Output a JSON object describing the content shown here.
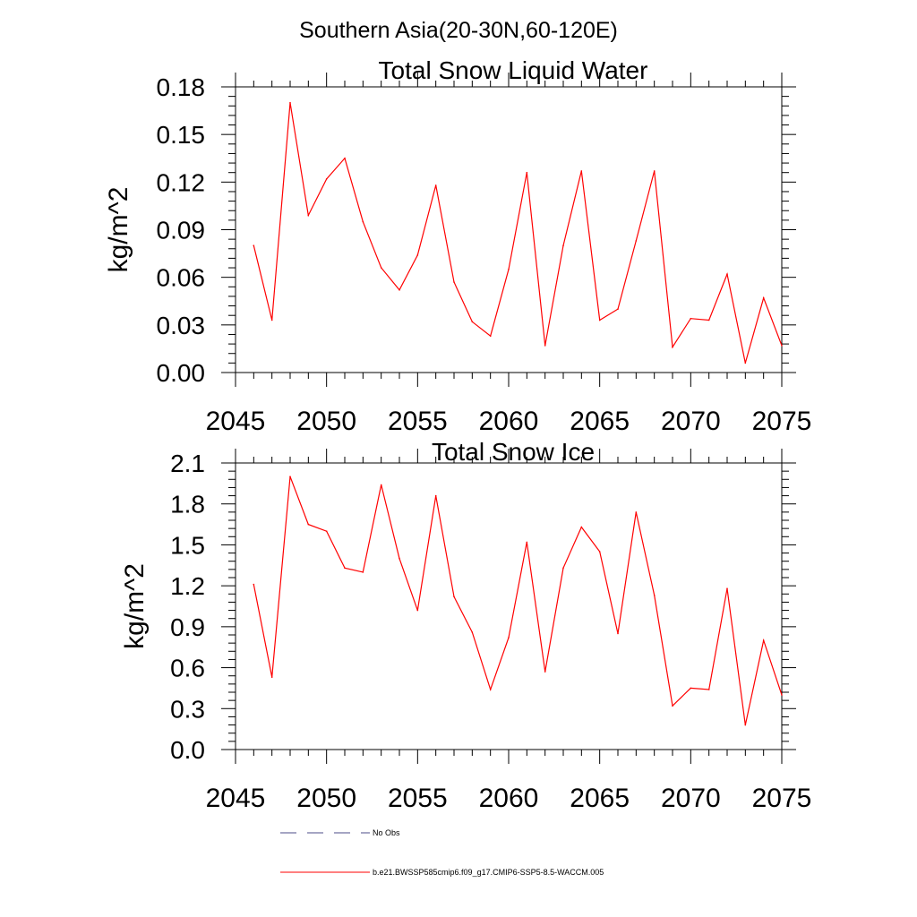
{
  "main_title": "Southern Asia(20-30N,60-120E)",
  "legend": {
    "items": [
      {
        "label": "No Obs",
        "style": "dashed",
        "color": "#4b4b8a"
      },
      {
        "label": "b.e21.BWSSP585cmip6.f09_g17.CMIP6-SSP5-8.5-WACCM.005",
        "style": "solid",
        "color": "#ff0000"
      }
    ]
  },
  "chart_data": [
    {
      "type": "line",
      "title": "Total Snow Liquid Water",
      "ylabel": "kg/m^2",
      "xlim": [
        2045,
        2075
      ],
      "ylim": [
        0.0,
        0.18
      ],
      "xticks": [
        2045,
        2050,
        2055,
        2060,
        2065,
        2070,
        2075
      ],
      "xtick_labels": [
        "2045",
        "2050",
        "2055",
        "2060",
        "2065",
        "2070",
        "2075"
      ],
      "yticks": [
        0.0,
        0.03,
        0.06,
        0.09,
        0.12,
        0.15,
        0.18
      ],
      "ytick_labels": [
        "0.00",
        "0.03",
        "0.06",
        "0.09",
        "0.12",
        "0.15",
        "0.18"
      ],
      "series": [
        {
          "name": "b.e21.BWSSP585cmip6.f09_g17.CMIP6-SSP5-8.5-WACCM.005",
          "color": "#ff0000",
          "x": [
            2046,
            2047,
            2048,
            2049,
            2050,
            2051,
            2052,
            2053,
            2054,
            2055,
            2056,
            2057,
            2058,
            2059,
            2060,
            2061,
            2062,
            2063,
            2064,
            2065,
            2066,
            2067,
            2068,
            2069,
            2070,
            2071,
            2072,
            2073,
            2074,
            2075
          ],
          "values": [
            0.08,
            0.033,
            0.17,
            0.099,
            0.122,
            0.135,
            0.095,
            0.066,
            0.052,
            0.074,
            0.118,
            0.057,
            0.032,
            0.023,
            0.065,
            0.126,
            0.017,
            0.08,
            0.127,
            0.033,
            0.04,
            0.083,
            0.127,
            0.016,
            0.034,
            0.033,
            0.062,
            0.006,
            0.047,
            0.017
          ]
        }
      ]
    },
    {
      "type": "line",
      "title": "Total Snow Ice",
      "ylabel": "kg/m^2",
      "xlim": [
        2045,
        2075
      ],
      "ylim": [
        0.0,
        2.1
      ],
      "xticks": [
        2045,
        2050,
        2055,
        2060,
        2065,
        2070,
        2075
      ],
      "xtick_labels": [
        "2045",
        "2050",
        "2055",
        "2060",
        "2065",
        "2070",
        "2075"
      ],
      "yticks": [
        0.0,
        0.3,
        0.6,
        0.9,
        1.2,
        1.5,
        1.8,
        2.1
      ],
      "ytick_labels": [
        "0.0",
        "0.3",
        "0.6",
        "0.9",
        "1.2",
        "1.5",
        "1.8",
        "2.1"
      ],
      "series": [
        {
          "name": "b.e21.BWSSP585cmip6.f09_g17.CMIP6-SSP5-8.5-WACCM.005",
          "color": "#ff0000",
          "x": [
            2046,
            2047,
            2048,
            2049,
            2050,
            2051,
            2052,
            2053,
            2054,
            2055,
            2056,
            2057,
            2058,
            2059,
            2060,
            2061,
            2062,
            2063,
            2064,
            2065,
            2066,
            2067,
            2068,
            2069,
            2070,
            2071,
            2072,
            2073,
            2074,
            2075
          ],
          "values": [
            1.21,
            0.53,
            2.0,
            1.65,
            1.6,
            1.33,
            1.3,
            1.94,
            1.4,
            1.02,
            1.86,
            1.12,
            0.86,
            0.44,
            0.82,
            1.52,
            0.57,
            1.33,
            1.63,
            1.45,
            0.85,
            1.74,
            1.13,
            0.32,
            0.45,
            0.44,
            1.18,
            0.18,
            0.8,
            0.4
          ]
        }
      ]
    }
  ]
}
